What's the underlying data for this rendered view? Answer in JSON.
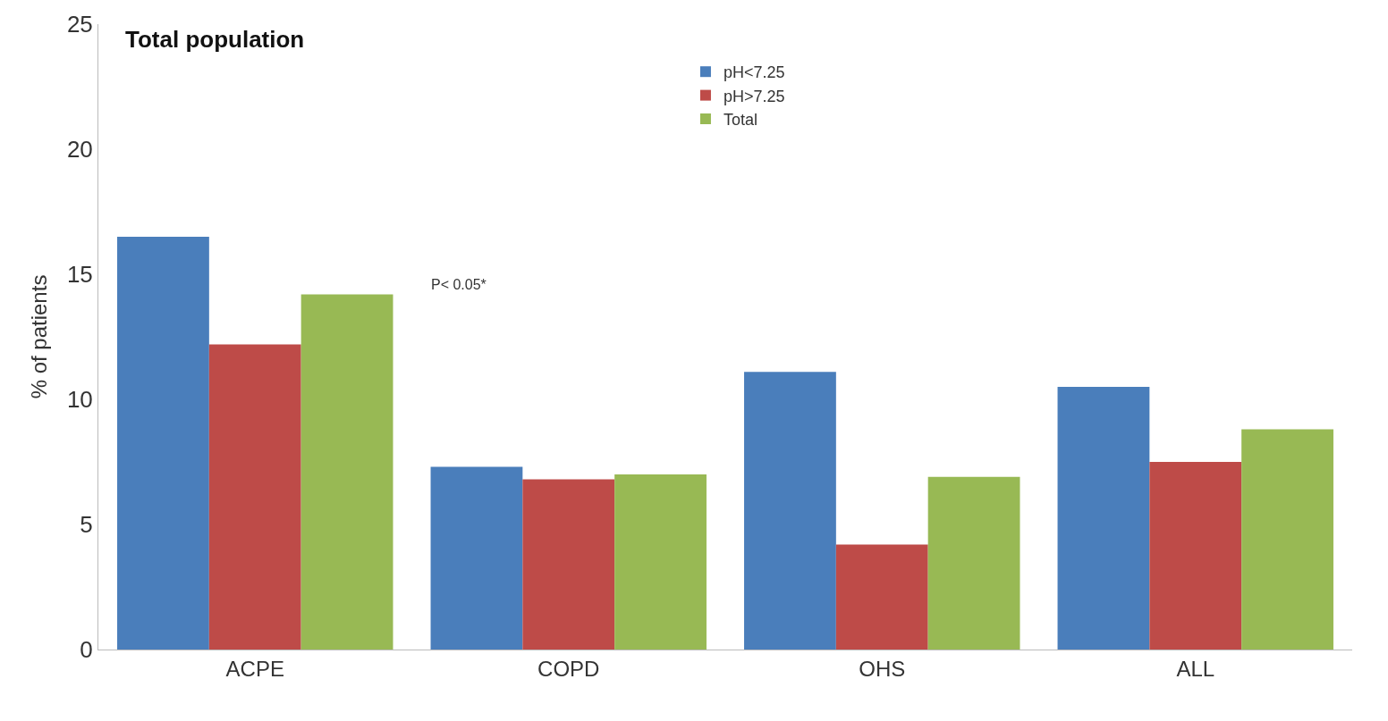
{
  "chart_data": {
    "type": "bar",
    "title": "Total population",
    "ylabel": "% of patients",
    "categories": [
      "ACPE",
      "COPD",
      "OHS",
      "ALL"
    ],
    "series": [
      {
        "name": "pH<7.25",
        "color": "#4a7ebb",
        "values": [
          16.5,
          7.3,
          11.1,
          10.5
        ]
      },
      {
        "name": "pH>7.25",
        "color": "#be4b48",
        "values": [
          12.2,
          6.8,
          4.2,
          7.5
        ]
      },
      {
        "name": "Total",
        "color": "#98b954",
        "values": [
          14.2,
          7.0,
          6.9,
          8.8
        ]
      }
    ],
    "ylim": [
      0,
      25
    ],
    "yticks": [
      0,
      5,
      10,
      15,
      20,
      25
    ],
    "grid": false,
    "legend": "top",
    "annotations": [
      "P< 0.05*"
    ]
  }
}
